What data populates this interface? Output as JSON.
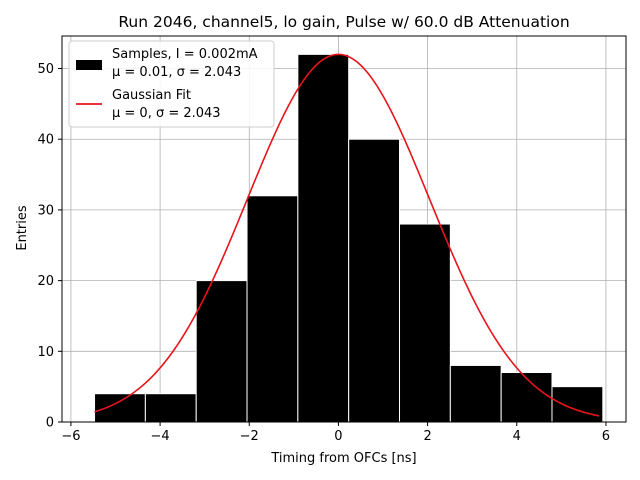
{
  "chart_data": {
    "type": "bar",
    "title": "Run 2046, channel5, lo gain, Pulse w/ 60.0 dB Attenuation",
    "xlabel": "Timing from OFCs [ns]",
    "ylabel": "Entries",
    "xlim": [
      -6.2,
      6.45
    ],
    "ylim": [
      0,
      54.6
    ],
    "xticks": [
      -6,
      -4,
      -2,
      0,
      2,
      4,
      6
    ],
    "xtick_labels": [
      "−6",
      "−4",
      "−2",
      "0",
      "2",
      "4",
      "6"
    ],
    "yticks": [
      0,
      10,
      20,
      30,
      40,
      50
    ],
    "ytick_labels": [
      "0",
      "10",
      "20",
      "30",
      "40",
      "50"
    ],
    "grid": true,
    "histogram": {
      "bin_edges": [
        -5.47,
        -4.33,
        -3.19,
        -2.05,
        -0.91,
        0.23,
        1.37,
        2.51,
        3.65,
        4.79,
        5.93
      ],
      "counts": [
        4,
        4,
        20,
        32,
        52,
        40,
        28,
        8,
        7,
        5
      ],
      "color": "#000000",
      "edgecolor": "#ffffff"
    },
    "fit": {
      "amplitude": 52,
      "mu": 0,
      "sigma": 2.043,
      "x_range": [
        -5.47,
        5.85
      ],
      "color": "#e8141b"
    },
    "legend": {
      "location": "upper left",
      "entries": [
        {
          "line1": "Samples, I = 0.002mA",
          "line2": "μ = 0.01, σ = 2.043"
        },
        {
          "line1": "Gaussian Fit",
          "line2": "μ = 0, σ = 2.043"
        }
      ]
    }
  }
}
